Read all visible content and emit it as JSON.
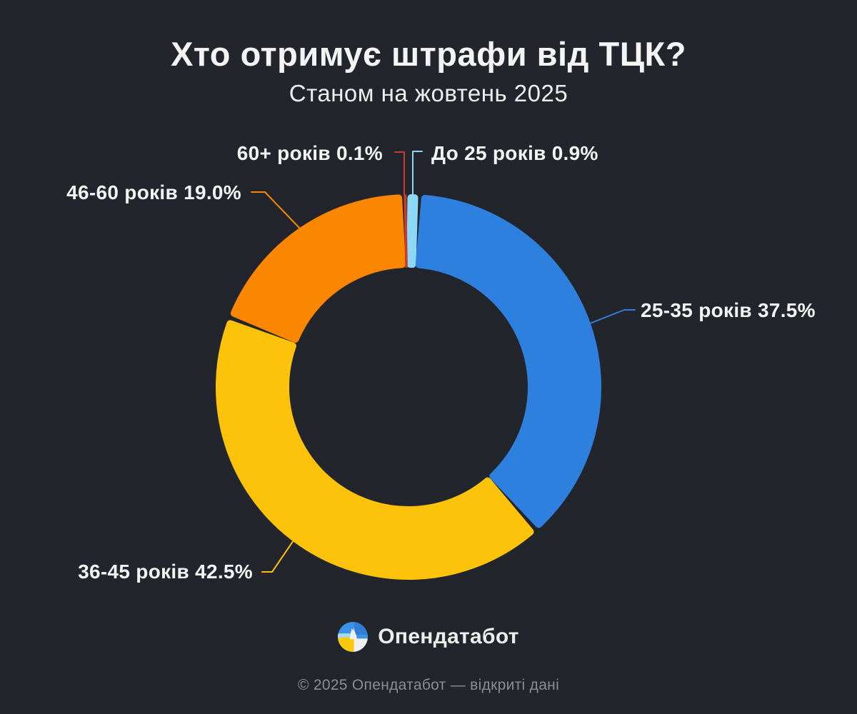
{
  "colors": {
    "background": "#22252b",
    "text": "#f4f4f4",
    "muted_text": "#8b8e94"
  },
  "chart_data": {
    "type": "pie",
    "donut": true,
    "title": "Хто отримує штрафи від ТЦК?",
    "subtitle": "Станом на жовтень 2025",
    "unit": "%",
    "legend_position": "outside-labels-with-leader-lines",
    "slices": [
      {
        "label": "До 25 років",
        "value": 0.9,
        "display": "До 25 років 0.9%",
        "color": "#8ed8f7"
      },
      {
        "label": "25-35 років",
        "value": 37.5,
        "display": "25-35 років 37.5%",
        "color": "#2e80de"
      },
      {
        "label": "36-45 років",
        "value": 42.5,
        "display": "36-45 років 42.5%",
        "color": "#fcc30a"
      },
      {
        "label": "46-60 років",
        "value": 19.0,
        "display": "46-60 років 19.0%",
        "color": "#fb8600"
      },
      {
        "label": "60+ років",
        "value": 0.1,
        "display": "60+ років 0.1%",
        "color": "#c63c30"
      }
    ]
  },
  "branding": {
    "logo_text": "Опендатабот",
    "logo_icon": "opendatabot-dog-circle-icon"
  },
  "footer": {
    "copyright": "© 2025 Опендатабот — відкриті дані"
  }
}
